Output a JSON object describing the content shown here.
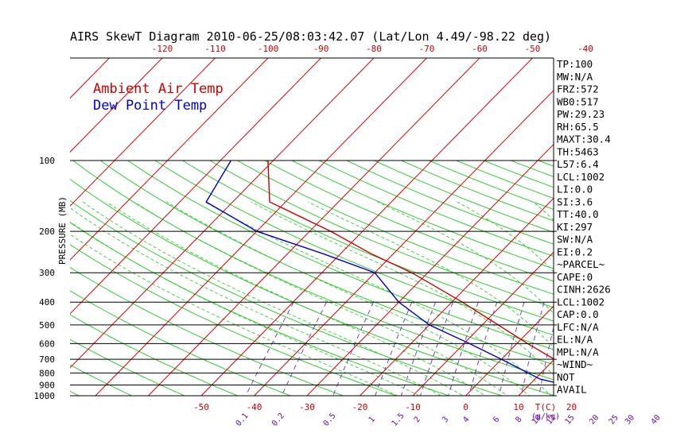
{
  "chart_data": {
    "type": "line",
    "title": "AIRS SkewT Diagram 2010-06-25/08:03:42.07 (Lat/Lon 4.49/-98.22 deg)",
    "ylabel": "PRESSURE (MB)",
    "xlabel": "T(C)",
    "mixing_ratio_unit": "(g/kg)",
    "top_temp_ticks": [
      -120,
      -110,
      -100,
      -90,
      -80,
      -70,
      -60,
      -50,
      -40
    ],
    "bottom_temp_ticks": [
      -50,
      -40,
      -30,
      -20,
      -10,
      0,
      10,
      20
    ],
    "pressure_ticks": [
      100,
      200,
      300,
      400,
      500,
      600,
      700,
      800,
      900,
      1000
    ],
    "mixing_ratio_labels": [
      "0.1",
      "0.2",
      "0.5",
      "1",
      "1.5",
      "2",
      "3",
      "4",
      "6",
      "8",
      "10",
      "12",
      "15",
      "20",
      "25",
      "30",
      "40"
    ],
    "series": [
      {
        "name": "Ambient Air Temp",
        "color": "#cc0000",
        "points": [
          {
            "p": 100,
            "t": -81
          },
          {
            "p": 150,
            "t": -73
          },
          {
            "p": 200,
            "t": -56
          },
          {
            "p": 250,
            "t": -44
          },
          {
            "p": 300,
            "t": -33
          },
          {
            "p": 400,
            "t": -18
          },
          {
            "p": 500,
            "t": -7
          },
          {
            "p": 600,
            "t": 2
          },
          {
            "p": 700,
            "t": 10
          },
          {
            "p": 850,
            "t": 19
          },
          {
            "p": 1000,
            "t": 27
          }
        ]
      },
      {
        "name": "Dew Point Temp",
        "color": "#0000cc",
        "points": [
          {
            "p": 100,
            "t": -88
          },
          {
            "p": 150,
            "t": -85
          },
          {
            "p": 200,
            "t": -70
          },
          {
            "p": 250,
            "t": -53
          },
          {
            "p": 300,
            "t": -40
          },
          {
            "p": 400,
            "t": -30
          },
          {
            "p": 500,
            "t": -20
          },
          {
            "p": 600,
            "t": -9
          },
          {
            "p": 700,
            "t": 0
          },
          {
            "p": 850,
            "t": 11
          },
          {
            "p": 900,
            "t": 17
          },
          {
            "p": 1000,
            "t": 22
          }
        ]
      }
    ],
    "indices": [
      "TP:100",
      "MW:N/A",
      "FRZ:572",
      "WB0:517",
      "PW:29.23",
      "RH:65.5",
      "MAXT:30.4",
      "TH:5463",
      "L57:6.4",
      "LCL:1002",
      "LI:0.0",
      "SI:3.6",
      "TT:40.0",
      "KI:297",
      "SW:N/A",
      "EI:0.2",
      "~PARCEL~",
      "CAPE:0",
      "CINH:2626",
      "LCL:1002",
      "CAP:0.0",
      "LFC:N/A",
      "EL:N/A",
      "MPL:N/A",
      "~WIND~",
      "NOT",
      "AVAIL"
    ]
  }
}
